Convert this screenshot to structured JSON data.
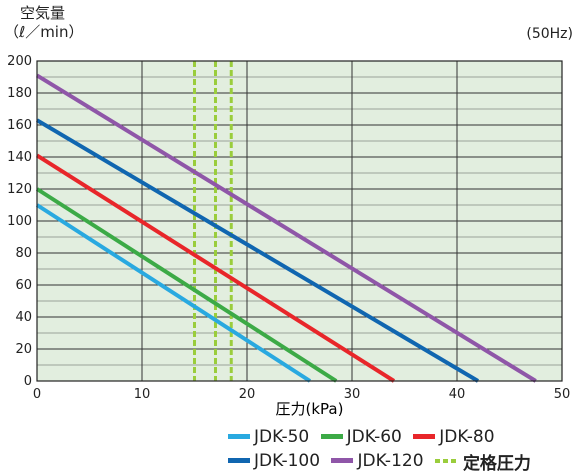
{
  "ylabel_line1": "空気量",
  "ylabel_line2": "（ℓ／min）",
  "frequency_note": "(50Hz)",
  "colors": {
    "plot_bg": "#E2EEDF",
    "grid": "#333333",
    "rated_band": "#9ACD3C"
  },
  "chart_data": {
    "type": "line",
    "xlabel": "圧力(kPa)",
    "ylabel": "空気量（ℓ／min）",
    "xlim": [
      0,
      50
    ],
    "ylim": [
      0,
      200
    ],
    "xticks": [
      0,
      10,
      20,
      30,
      40,
      50
    ],
    "yticks": [
      0,
      20,
      40,
      60,
      80,
      100,
      120,
      140,
      160,
      180,
      200
    ],
    "grid": true,
    "legend_position": "bottom",
    "series": [
      {
        "name": "JDK-50",
        "color": "#29A9E0",
        "points": [
          [
            0,
            110
          ],
          [
            26,
            0
          ]
        ]
      },
      {
        "name": "JDK-60",
        "color": "#3CAA46",
        "points": [
          [
            0,
            120
          ],
          [
            28.5,
            0
          ]
        ]
      },
      {
        "name": "JDK-80",
        "color": "#E8262A",
        "points": [
          [
            0,
            141
          ],
          [
            34,
            0
          ]
        ]
      },
      {
        "name": "JDK-100",
        "color": "#1066B0",
        "points": [
          [
            0,
            163
          ],
          [
            42,
            0
          ]
        ]
      },
      {
        "name": "JDK-120",
        "color": "#8F56A8",
        "points": [
          [
            0,
            191
          ],
          [
            47.5,
            0
          ]
        ]
      }
    ],
    "rated_pressure": {
      "name": "定格圧力",
      "color": "#9ACD3C",
      "x": [
        15,
        17,
        18.5
      ]
    }
  }
}
